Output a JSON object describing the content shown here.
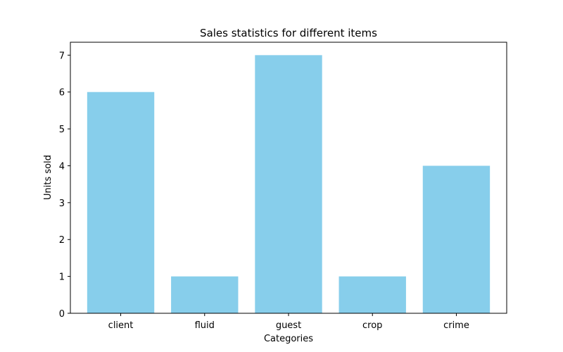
{
  "chart_data": {
    "type": "bar",
    "title": "Sales statistics for different items",
    "xlabel": "Categories",
    "ylabel": "Units sold",
    "categories": [
      "client",
      "fluid",
      "guest",
      "crop",
      "crime"
    ],
    "values": [
      6,
      1,
      7,
      1,
      4
    ],
    "ylim": [
      0,
      7.35
    ],
    "yticks": [
      0,
      1,
      2,
      3,
      4,
      5,
      6,
      7
    ],
    "bar_color": "#87CEEB",
    "grid": false,
    "legend": "none"
  }
}
